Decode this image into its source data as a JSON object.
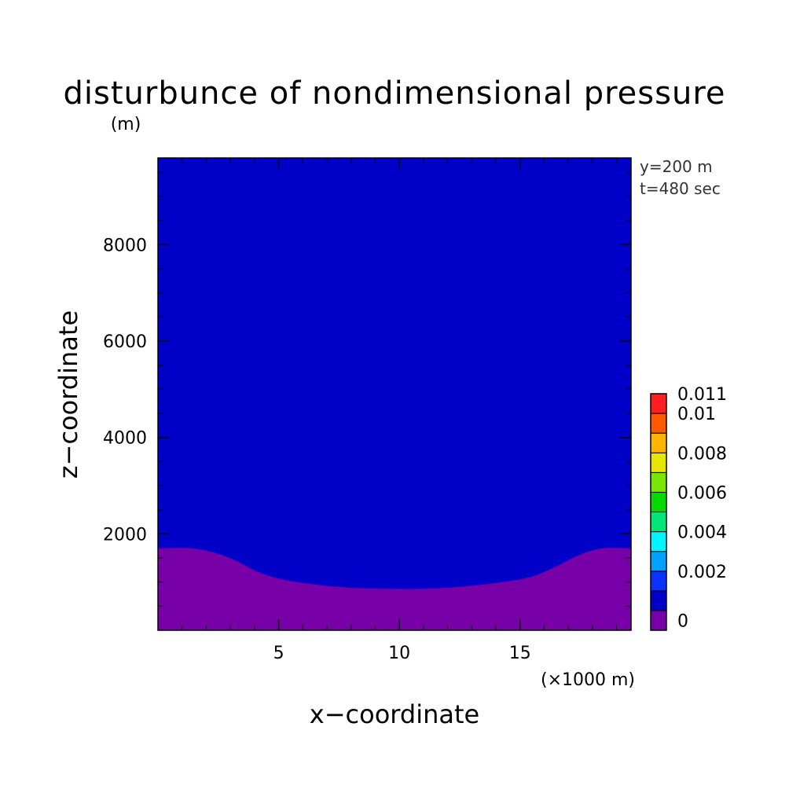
{
  "chart_data": {
    "type": "heatmap",
    "title": "disturbunce of nondimensional pressure",
    "xlabel": "x−coordinate",
    "ylabel": "z−coordinate",
    "x_unit": "(×1000 m)",
    "y_unit": "(m)",
    "annotations": [
      "y=200 m",
      "t=480 sec"
    ],
    "xlim": [
      0,
      19.6
    ],
    "ylim": [
      0,
      9800
    ],
    "x_ticks": [
      5,
      10,
      15
    ],
    "y_ticks": [
      2000,
      4000,
      6000,
      8000
    ],
    "x_tick_labels": [
      "5",
      "10",
      "15"
    ],
    "y_tick_labels": [
      "2000",
      "4000",
      "6000",
      "8000"
    ],
    "contour_boundary": {
      "level": 0,
      "x": [
        0,
        1.4,
        2.4,
        3.2,
        4.2,
        5.2,
        6.5,
        8,
        9.5,
        11,
        12.5,
        14,
        15.4,
        16.4,
        17.4,
        18.4,
        19.6
      ],
      "z": [
        1700,
        1700,
        1600,
        1450,
        1200,
        1050,
        950,
        880,
        860,
        860,
        900,
        980,
        1100,
        1300,
        1550,
        1700,
        1700
      ]
    },
    "regions": [
      {
        "range": "< 0",
        "description_color": "#7800a8",
        "where": "below boundary"
      },
      {
        "range": "0 – 0.001",
        "description_color": "#0000c8",
        "where": "above boundary"
      }
    ],
    "colorbar": {
      "tick_labels": [
        "0.011",
        "0.01",
        "0.008",
        "0.006",
        "0.004",
        "0.002",
        "0"
      ],
      "tick_values": [
        0.011,
        0.01,
        0.008,
        0.006,
        0.004,
        0.002,
        0
      ],
      "levels_bottom_to_top": [
        {
          "color": "#7800a8"
        },
        {
          "color": "#0000c8"
        },
        {
          "color": "#0a32ff"
        },
        {
          "color": "#00a0ff"
        },
        {
          "color": "#00f5ff"
        },
        {
          "color": "#00e678"
        },
        {
          "color": "#00dc00"
        },
        {
          "color": "#78e600"
        },
        {
          "color": "#e6e600"
        },
        {
          "color": "#ffb400"
        },
        {
          "color": "#ff5a00"
        },
        {
          "color": "#ff1e1e"
        }
      ]
    }
  }
}
